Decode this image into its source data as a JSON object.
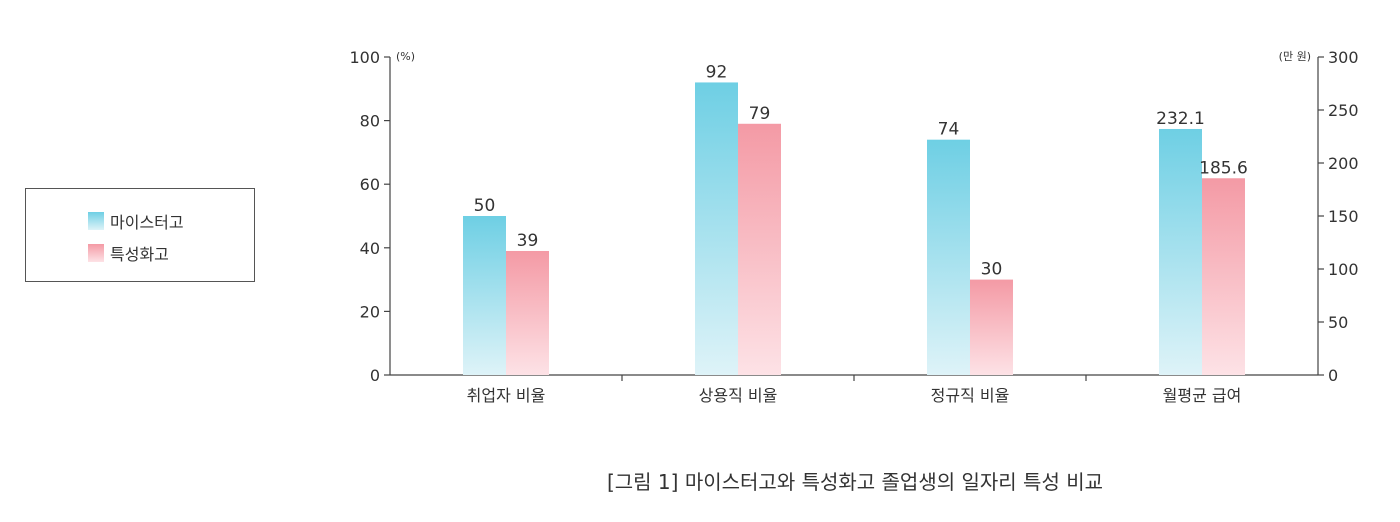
{
  "legend": {
    "items": [
      {
        "label": "마이스터고",
        "color": "#6ecfe4"
      },
      {
        "label": "특성화고",
        "color": "#f49aa5"
      }
    ]
  },
  "caption": "[그림 1] 마이스터고와 특성화고 졸업생의 일자리 특성 비교",
  "chart_data": {
    "type": "bar",
    "categories": [
      "취업자 비율",
      "상용직 비율",
      "정규직 비율",
      "월평균 급여"
    ],
    "series": [
      {
        "name": "마이스터고",
        "values": [
          50,
          92,
          74,
          232.1
        ],
        "labels": [
          "50",
          "92",
          "74",
          "232.1"
        ],
        "color": "#6ecfe4"
      },
      {
        "name": "특성화고",
        "values": [
          39,
          79,
          30,
          185.6
        ],
        "labels": [
          "39",
          "79",
          "30",
          "185.6"
        ],
        "color": "#f49aa5"
      }
    ],
    "axis_assignment": [
      "left",
      "left",
      "left",
      "right"
    ],
    "y_left": {
      "unit": "(%)",
      "range": [
        0,
        100
      ],
      "ticks": [
        0,
        20,
        40,
        60,
        80,
        100
      ]
    },
    "y_right": {
      "unit": "(만 원)",
      "range": [
        0,
        300
      ],
      "ticks": [
        0,
        50,
        100,
        150,
        200,
        250,
        300
      ]
    },
    "grid": false,
    "legend_position": "left"
  }
}
